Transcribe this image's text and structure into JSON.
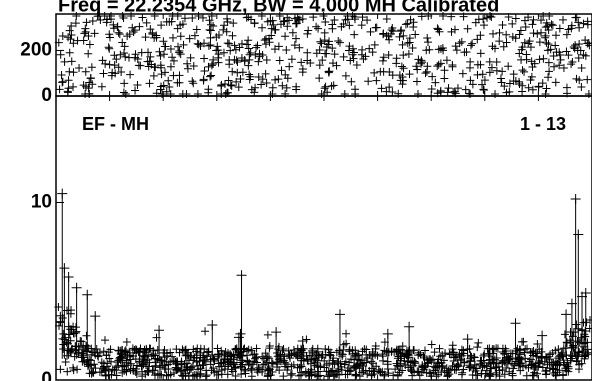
{
  "title": "Freq = 22.2354 GHz, BW = 4.000 MH Calibrated",
  "chart_data": [
    {
      "type": "scatter",
      "marker": "plus",
      "panel": "top",
      "ylim": [
        0,
        360
      ],
      "yticks": [
        {
          "value": 0,
          "label": "0"
        },
        {
          "value": 200,
          "label": "200"
        }
      ],
      "xlim": [
        0,
        1
      ],
      "points_count": 700,
      "value_range": [
        0,
        360
      ],
      "distribution": "uniform random phase-like scatter across full range"
    },
    {
      "type": "scatter",
      "marker": "plus",
      "panel": "bottom",
      "label_left": "EF - MH",
      "label_right": "1 - 13",
      "ylim": [
        0,
        16
      ],
      "yticks": [
        {
          "value": 0,
          "label": "0"
        },
        {
          "value": 10,
          "label": "10"
        }
      ],
      "xlim": [
        0,
        1
      ],
      "points_count": 1100,
      "baseline_range": [
        0.2,
        1.8
      ],
      "edge_rise": {
        "left": 5.5,
        "right": 4.8
      },
      "spikes": [
        {
          "x": 0.008,
          "y": 10.5
        },
        {
          "x": 0.012,
          "y": 6.3
        },
        {
          "x": 0.02,
          "y": 5.8
        },
        {
          "x": 0.035,
          "y": 5.2
        },
        {
          "x": 0.055,
          "y": 4.8
        },
        {
          "x": 0.07,
          "y": 3.6
        },
        {
          "x": 0.19,
          "y": 2.8
        },
        {
          "x": 0.29,
          "y": 3.1
        },
        {
          "x": 0.34,
          "y": 2.4
        },
        {
          "x": 0.343,
          "y": 2.6
        },
        {
          "x": 0.345,
          "y": 5.9
        },
        {
          "x": 0.41,
          "y": 2.7
        },
        {
          "x": 0.46,
          "y": 2.2
        },
        {
          "x": 0.53,
          "y": 3.7
        },
        {
          "x": 0.62,
          "y": 2.6
        },
        {
          "x": 0.66,
          "y": 3.0
        },
        {
          "x": 0.77,
          "y": 2.3
        },
        {
          "x": 0.86,
          "y": 3.2
        },
        {
          "x": 0.91,
          "y": 2.5
        },
        {
          "x": 0.955,
          "y": 3.7
        },
        {
          "x": 0.966,
          "y": 4.3
        },
        {
          "x": 0.973,
          "y": 10.2
        },
        {
          "x": 0.978,
          "y": 8.2
        },
        {
          "x": 0.985,
          "y": 4.7
        },
        {
          "x": 0.992,
          "y": 4.9
        }
      ]
    }
  ]
}
